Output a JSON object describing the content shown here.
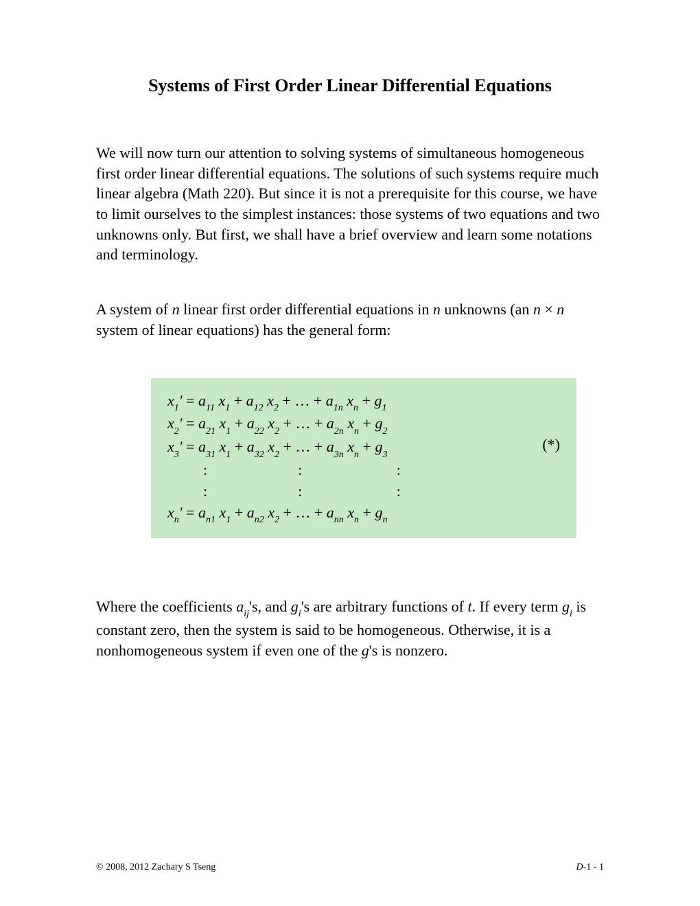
{
  "title": "Systems of First Order Linear Differential Equations",
  "para1_a": "We will now turn our attention to solving systems of simultaneous homogeneous first order linear differential equations.  The solutions of such systems require much linear algebra (Math 220).  But since it is not a prerequisite for this course, we have to limit ourselves to the simplest instances: those systems of two equations and two unknowns only.  But first, we shall have a brief overview and learn some notations and terminology.",
  "para2_a": "A system of ",
  "para2_b": "n",
  "para2_c": " linear first order differential equations in ",
  "para2_d": "n",
  "para2_e": " unknowns (an ",
  "para2_f": "n",
  "para2_g": " × ",
  "para2_h": "n",
  "para2_i": " system of linear equations) has the general form:",
  "equations": {
    "background_color": "#c7e9c3",
    "star": "(*)",
    "lines": [
      {
        "lhs_sub": "1",
        "a1_sub": "11",
        "x1_sub": "1",
        "a2_sub": "12",
        "x2_sub": "2",
        "an_sub": "1n",
        "xn_sub": "n",
        "g_sub": "1"
      },
      {
        "lhs_sub": "2",
        "a1_sub": "21",
        "x1_sub": "1",
        "a2_sub": "22",
        "x2_sub": "2",
        "an_sub": "2n",
        "xn_sub": "n",
        "g_sub": "2"
      },
      {
        "lhs_sub": "3",
        "a1_sub": "31",
        "x1_sub": "1",
        "a2_sub": "32",
        "x2_sub": "2",
        "an_sub": "3n",
        "xn_sub": "n",
        "g_sub": "3"
      },
      {
        "lhs_sub": "n",
        "a1_sub": "n1",
        "x1_sub": "1",
        "a2_sub": "n2",
        "x2_sub": "2",
        "an_sub": "nn",
        "xn_sub": "n",
        "g_sub": "n"
      }
    ],
    "dots_row": ":                        :                         :"
  },
  "para3_a": "Where the coefficients ",
  "para3_b": "a",
  "para3_b_sub": "ij",
  "para3_c": "'s, and ",
  "para3_d": "g",
  "para3_d_sub": "i",
  "para3_e": "'s are arbitrary functions of ",
  "para3_f": "t",
  "para3_g": ".  If every term ",
  "para3_h": "g",
  "para3_h_sub": "i",
  "para3_i": " is constant zero, then the system is said to be homogeneous.  Otherwise, it is a nonhomogeneous system if even one of the ",
  "para3_j": "g",
  "para3_k": "'s is nonzero.",
  "footer_left": "© 2008, 2012  Zachary S Tseng",
  "footer_right_prefix": "D",
  "footer_right_rest": "-1 -  1"
}
